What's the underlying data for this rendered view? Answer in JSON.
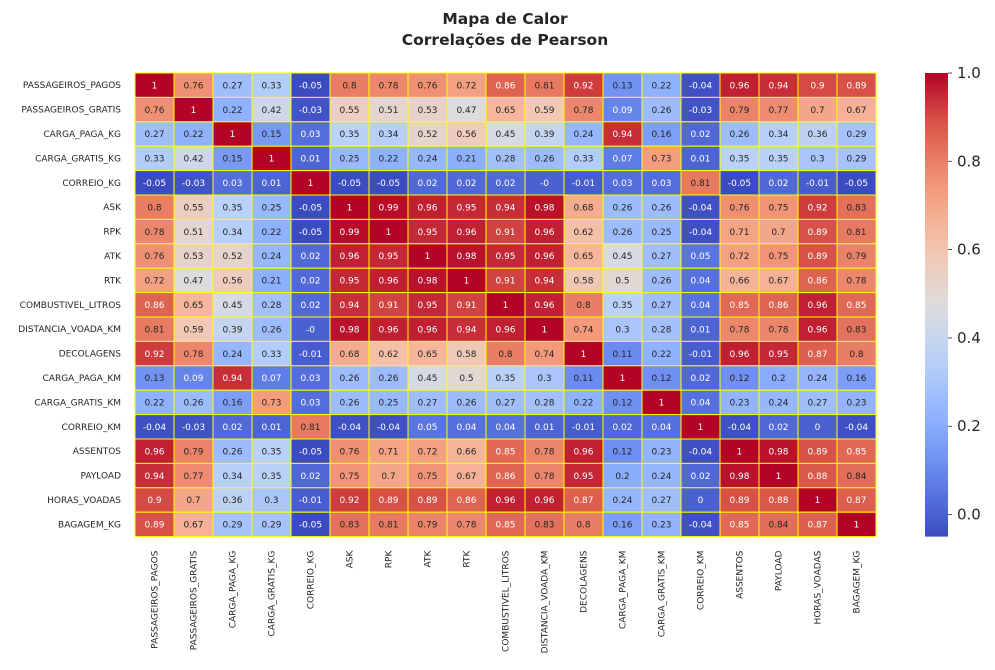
{
  "chart_data": {
    "type": "heatmap",
    "title": "Mapa de Calor",
    "subtitle": "Correlações de Pearson",
    "labels": [
      "PASSAGEIROS_PAGOS",
      "PASSAGEIROS_GRATIS",
      "CARGA_PAGA_KG",
      "CARGA_GRATIS_KG",
      "CORREIO_KG",
      "ASK",
      "RPK",
      "ATK",
      "RTK",
      "COMBUSTIVEL_LITROS",
      "DISTANCIA_VOADA_KM",
      "DECOLAGENS",
      "CARGA_PAGA_KM",
      "CARGA_GRATIS_KM",
      "CORREIO_KM",
      "ASSENTOS",
      "PAYLOAD",
      "HORAS_VOADAS",
      "BAGAGEM_KG"
    ],
    "values": [
      [
        1,
        0.76,
        0.27,
        0.33,
        -0.05,
        0.8,
        0.78,
        0.76,
        0.72,
        0.86,
        0.81,
        0.92,
        0.13,
        0.22,
        -0.04,
        0.96,
        0.94,
        0.9,
        0.89
      ],
      [
        0.76,
        1,
        0.22,
        0.42,
        -0.03,
        0.55,
        0.51,
        0.53,
        0.47,
        0.65,
        0.59,
        0.78,
        0.09,
        0.26,
        -0.03,
        0.79,
        0.77,
        0.7,
        0.67
      ],
      [
        0.27,
        0.22,
        1,
        0.15,
        0.03,
        0.35,
        0.34,
        0.52,
        0.56,
        0.45,
        0.39,
        0.24,
        0.94,
        0.16,
        0.02,
        0.26,
        0.34,
        0.36,
        0.29
      ],
      [
        0.33,
        0.42,
        0.15,
        1,
        0.01,
        0.25,
        0.22,
        0.24,
        0.21,
        0.28,
        0.26,
        0.33,
        0.07,
        0.73,
        0.01,
        0.35,
        0.35,
        0.3,
        0.29
      ],
      [
        -0.05,
        -0.03,
        0.03,
        0.01,
        1,
        -0.05,
        -0.05,
        0.02,
        0.02,
        0.02,
        0,
        -0.01,
        0.03,
        0.03,
        0.81,
        -0.05,
        0.02,
        -0.01,
        -0.05
      ],
      [
        0.8,
        0.55,
        0.35,
        0.25,
        -0.05,
        1,
        0.99,
        0.96,
        0.95,
        0.94,
        0.98,
        0.68,
        0.26,
        0.26,
        -0.04,
        0.76,
        0.75,
        0.92,
        0.83
      ],
      [
        0.78,
        0.51,
        0.34,
        0.22,
        -0.05,
        0.99,
        1,
        0.95,
        0.96,
        0.91,
        0.96,
        0.62,
        0.26,
        0.25,
        -0.04,
        0.71,
        0.7,
        0.89,
        0.81
      ],
      [
        0.76,
        0.53,
        0.52,
        0.24,
        0.02,
        0.96,
        0.95,
        1,
        0.98,
        0.95,
        0.96,
        0.65,
        0.45,
        0.27,
        0.05,
        0.72,
        0.75,
        0.89,
        0.79
      ],
      [
        0.72,
        0.47,
        0.56,
        0.21,
        0.02,
        0.95,
        0.96,
        0.98,
        1,
        0.91,
        0.94,
        0.58,
        0.5,
        0.26,
        0.04,
        0.66,
        0.67,
        0.86,
        0.78
      ],
      [
        0.86,
        0.65,
        0.45,
        0.28,
        0.02,
        0.94,
        0.91,
        0.95,
        0.91,
        1,
        0.96,
        0.8,
        0.35,
        0.27,
        0.04,
        0.85,
        0.86,
        0.96,
        0.85
      ],
      [
        0.81,
        0.59,
        0.39,
        0.26,
        0,
        0.98,
        0.96,
        0.96,
        0.94,
        0.96,
        1,
        0.74,
        0.3,
        0.28,
        0.01,
        0.78,
        0.78,
        0.96,
        0.83
      ],
      [
        0.92,
        0.78,
        0.24,
        0.33,
        -0.01,
        0.68,
        0.62,
        0.65,
        0.58,
        0.8,
        0.74,
        1,
        0.11,
        0.22,
        -0.01,
        0.96,
        0.95,
        0.87,
        0.8
      ],
      [
        0.13,
        0.09,
        0.94,
        0.07,
        0.03,
        0.26,
        0.26,
        0.45,
        0.5,
        0.35,
        0.3,
        0.11,
        1,
        0.12,
        0.02,
        0.12,
        0.2,
        0.24,
        0.16
      ],
      [
        0.22,
        0.26,
        0.16,
        0.73,
        0.03,
        0.26,
        0.25,
        0.27,
        0.26,
        0.27,
        0.28,
        0.22,
        0.12,
        1,
        0.04,
        0.23,
        0.24,
        0.27,
        0.23
      ],
      [
        -0.04,
        -0.03,
        0.02,
        0.01,
        0.81,
        -0.04,
        -0.04,
        0.05,
        0.04,
        0.04,
        0.01,
        -0.01,
        0.02,
        0.04,
        1,
        -0.04,
        0.02,
        0,
        -0.04
      ],
      [
        0.96,
        0.79,
        0.26,
        0.35,
        -0.05,
        0.76,
        0.71,
        0.72,
        0.66,
        0.85,
        0.78,
        0.96,
        0.12,
        0.23,
        -0.04,
        1,
        0.98,
        0.89,
        0.85
      ],
      [
        0.94,
        0.77,
        0.34,
        0.35,
        0.02,
        0.75,
        0.7,
        0.75,
        0.67,
        0.86,
        0.78,
        0.95,
        0.2,
        0.24,
        0.02,
        0.98,
        1,
        0.88,
        0.84
      ],
      [
        0.9,
        0.7,
        0.36,
        0.3,
        -0.01,
        0.92,
        0.89,
        0.89,
        0.86,
        0.96,
        0.96,
        0.87,
        0.24,
        0.27,
        0,
        0.89,
        0.88,
        1,
        0.87
      ],
      [
        0.89,
        0.67,
        0.29,
        0.29,
        -0.05,
        0.83,
        0.81,
        0.79,
        0.78,
        0.85,
        0.83,
        0.8,
        0.16,
        0.23,
        -0.04,
        0.85,
        0.84,
        0.87,
        1
      ]
    ],
    "colormap": "coolwarm",
    "vmin": -0.05,
    "vmax": 1.0,
    "colorbar_ticks": [
      "0.0",
      "0.2",
      "0.4",
      "0.6",
      "0.8",
      "1.0"
    ],
    "cell_border_color": "#ffff00"
  }
}
